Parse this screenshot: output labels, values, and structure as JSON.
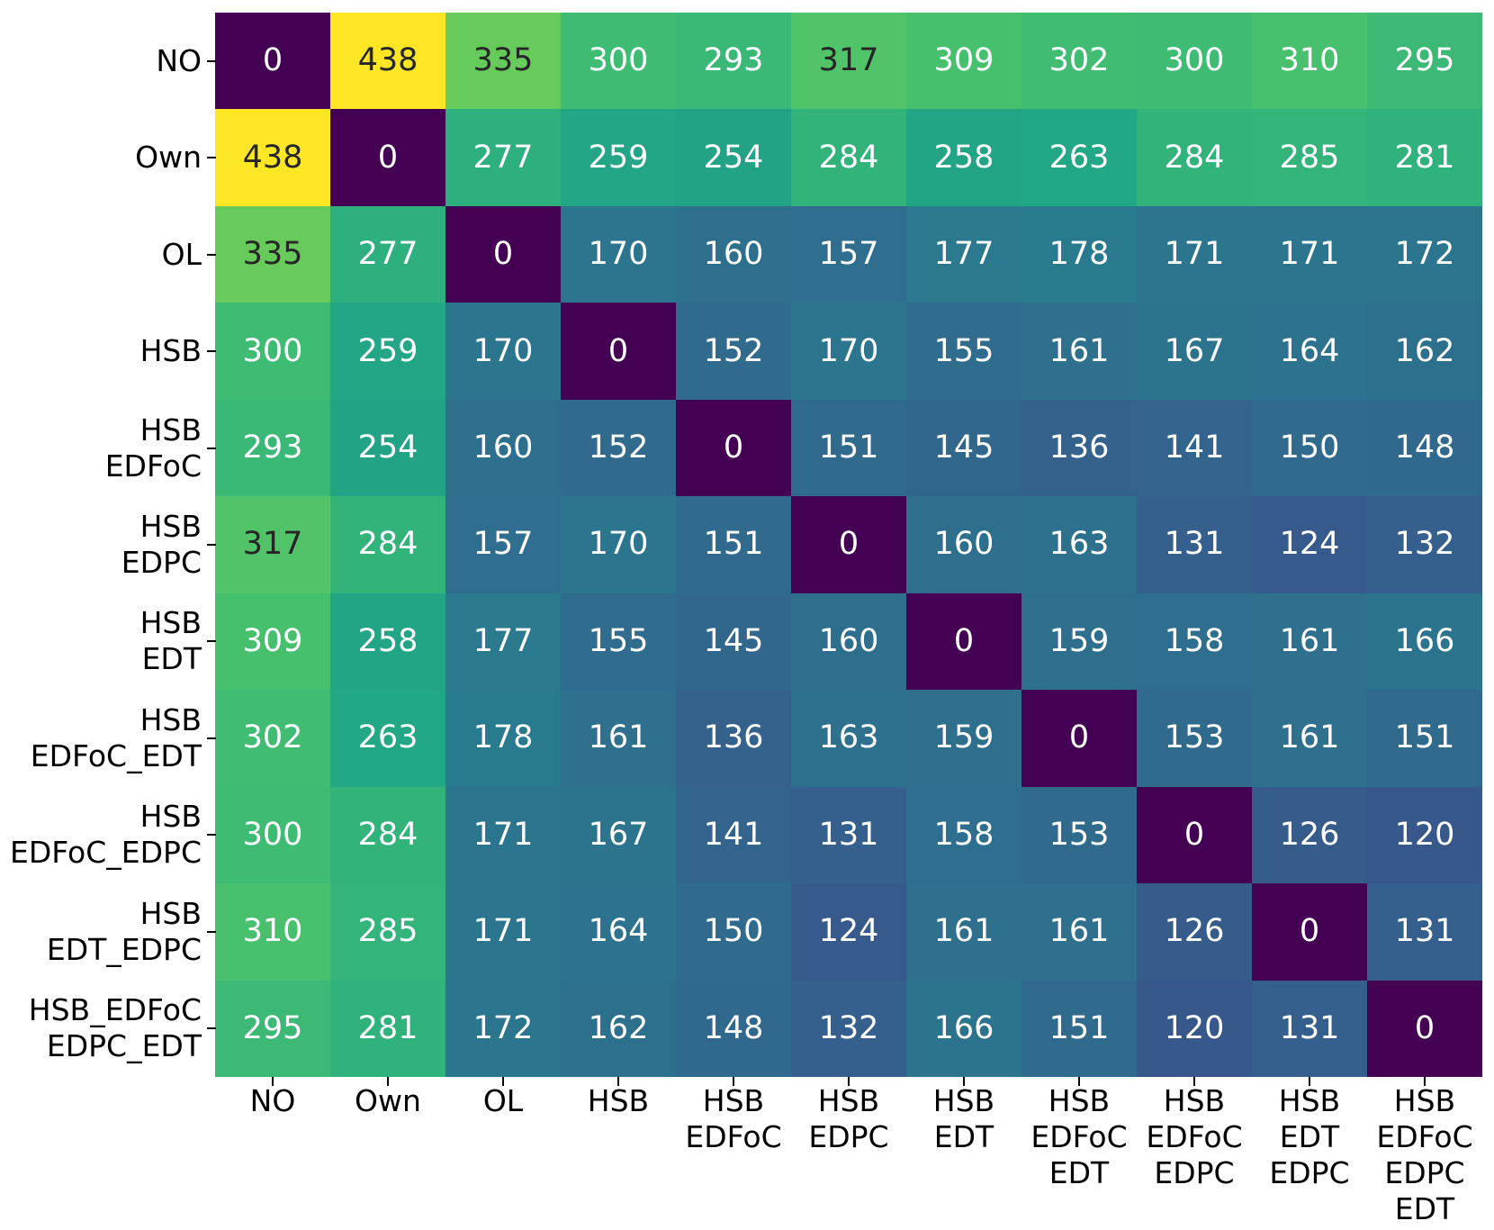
{
  "chart_data": {
    "type": "heatmap",
    "title": "",
    "xlabel": "",
    "ylabel": "",
    "colormap": "viridis",
    "vmin": 0,
    "vmax": 438,
    "grid": false,
    "legend": "none",
    "colors": {
      "min_color": "#440154",
      "max_color": "#fde725",
      "annot_light": "#ffffff",
      "annot_dark": "#262626",
      "tick_color": "#000000",
      "background": "#ffffff"
    },
    "row_labels": [
      "NO",
      "Own",
      "OL",
      "HSB",
      "HSB\nEDFoC",
      "HSB\nEDPC",
      "HSB\nEDT",
      "HSB\nEDFoC_EDT",
      "HSB\nEDFoC_EDPC",
      "HSB\nEDT_EDPC",
      "HSB_EDFoC\nEDPC_EDT"
    ],
    "col_labels": [
      "NO",
      "Own",
      "OL",
      "HSB",
      "HSB\nEDFoC",
      "HSB\nEDPC",
      "HSB\nEDT",
      "HSB\nEDFoC\nEDT",
      "HSB\nEDFoC\nEDPC",
      "HSB\nEDT\nEDPC",
      "HSB\nEDFoC\nEDPC\nEDT"
    ],
    "matrix": [
      [
        0,
        438,
        335,
        300,
        293,
        317,
        309,
        302,
        300,
        310,
        295
      ],
      [
        438,
        0,
        277,
        259,
        254,
        284,
        258,
        263,
        284,
        285,
        281
      ],
      [
        335,
        277,
        0,
        170,
        160,
        157,
        177,
        178,
        171,
        171,
        172
      ],
      [
        300,
        259,
        170,
        0,
        152,
        170,
        155,
        161,
        167,
        164,
        162
      ],
      [
        293,
        254,
        160,
        152,
        0,
        151,
        145,
        136,
        141,
        150,
        148
      ],
      [
        317,
        284,
        157,
        170,
        151,
        0,
        160,
        163,
        131,
        124,
        132
      ],
      [
        309,
        258,
        177,
        155,
        145,
        160,
        0,
        159,
        158,
        161,
        166
      ],
      [
        302,
        263,
        178,
        161,
        136,
        163,
        159,
        0,
        153,
        161,
        151
      ],
      [
        300,
        284,
        171,
        167,
        141,
        131,
        158,
        153,
        0,
        126,
        120
      ],
      [
        310,
        285,
        171,
        164,
        150,
        124,
        161,
        161,
        126,
        0,
        131
      ],
      [
        295,
        281,
        172,
        162,
        148,
        132,
        166,
        151,
        120,
        131,
        0
      ]
    ]
  }
}
